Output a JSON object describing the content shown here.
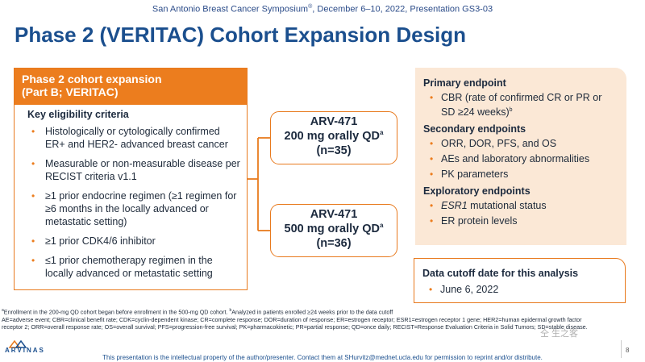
{
  "header": {
    "conference": "San Antonio Breast Cancer Symposium",
    "conference_mark": "®",
    "conference_tail": ", December 6–10, 2022, Presentation GS3-03"
  },
  "title": "Phase 2 (VERITAC) Cohort Expansion Design",
  "cohort": {
    "heading_line1": "Phase 2 cohort expansion",
    "heading_line2": "(Part B; VERITAC)",
    "criteria_title": "Key eligibility criteria",
    "criteria": [
      "Histologically or cytologically confirmed ER+ and HER2- advanced breast cancer",
      "Measurable or non-measurable disease per RECIST criteria v1.1",
      "≥1 prior endocrine regimen (≥1 regimen for ≥6 months in the locally advanced or metastatic setting)",
      "≥1 prior CDK4/6 inhibitor",
      "≤1 prior chemotherapy regimen in the locally advanced or metastatic setting"
    ]
  },
  "arms": [
    {
      "name": "ARV-471",
      "dose": "200 mg orally QD",
      "sup": "a",
      "n": "(n=35)"
    },
    {
      "name": "ARV-471",
      "dose": "500 mg orally QD",
      "sup": "a",
      "n": "(n=36)"
    }
  ],
  "endpoints": {
    "primary_head": "Primary endpoint",
    "primary": {
      "text": "CBR (rate of confirmed CR or PR or SD ≥24 weeks)",
      "sup": "b"
    },
    "secondary_head": "Secondary endpoints",
    "secondary": [
      "ORR, DOR, PFS, and OS",
      "AEs and laboratory abnormalities",
      "PK parameters"
    ],
    "exploratory_head": "Exploratory endpoints",
    "exploratory_italic": "ESR1",
    "exploratory_first_tail": " mutational status",
    "exploratory_second": "ER protein levels"
  },
  "cutoff": {
    "head": "Data cutoff date for this analysis",
    "date": "June 6, 2022"
  },
  "footnotes": {
    "line1_a": "a",
    "line1_a_text": "Enrollment in the 200-mg QD cohort began before enrollment in the 500-mg QD cohort. ",
    "line1_b": "b",
    "line1_b_text": "Analyzed in patients enrolled ≥24 weeks prior to the data cutoff",
    "line2": "AE=adverse event; CBR=clinical benefit rate; CDK=cyclin-dependent kinase; CR=complete response; DOR=duration of response; ER=estrogen receptor; ESR1=estrogen receptor 1 gene; HER2=human epidermal growth factor",
    "line3": "receptor 2; ORR=overall response rate; OS=overall survival; PFS=progression-free survival; PK=pharmacokinetic; PR=partial response; QD=once daily; RECIST=Response Evaluation Criteria in Solid Tumors; SD=stable disease."
  },
  "logo_text": "ARVINAS",
  "bottom_note": "This presentation is the intellectual property of the author/presenter. Contact them at SHurvitz@mednet.ucla.edu for permission to reprint and/or distribute.",
  "page_number": "8",
  "watermark": "仝 生之客"
}
